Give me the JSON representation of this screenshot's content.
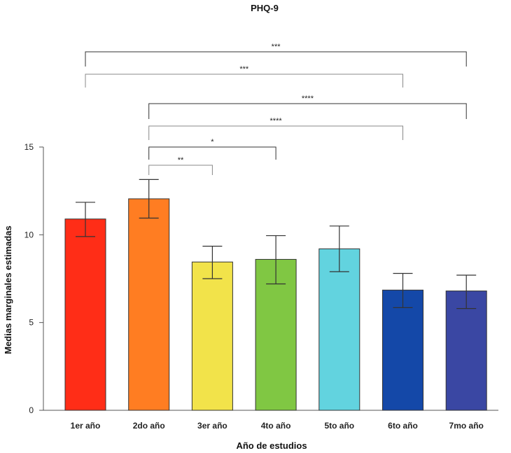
{
  "chart_data": {
    "type": "bar",
    "title": "PHQ-9",
    "xlabel": "Año de estudios",
    "ylabel": "Medias marginales estimadas",
    "ylim": [
      0,
      15
    ],
    "yticks": [
      0,
      5,
      10,
      15
    ],
    "grid": false,
    "categories": [
      "1er año",
      "2do año",
      "3er año",
      "4to año",
      "5to año",
      "6to año",
      "7mo año"
    ],
    "values": [
      10.9,
      12.05,
      8.45,
      8.6,
      9.2,
      6.85,
      6.8
    ],
    "error_low": [
      9.9,
      10.95,
      7.5,
      7.2,
      7.9,
      5.85,
      5.8
    ],
    "error_high": [
      11.85,
      13.15,
      9.35,
      9.95,
      10.5,
      7.8,
      7.7
    ],
    "colors": [
      "#ff2d17",
      "#ff7d22",
      "#f2e34a",
      "#80c743",
      "#62d3df",
      "#1448a8",
      "#3a47a3"
    ],
    "significance": [
      {
        "from": 0,
        "to": 6,
        "label": "***"
      },
      {
        "from": 0,
        "to": 5,
        "label": "***"
      },
      {
        "from": 1,
        "to": 6,
        "label": "****"
      },
      {
        "from": 1,
        "to": 5,
        "label": "****"
      },
      {
        "from": 1,
        "to": 3,
        "label": "*"
      },
      {
        "from": 1,
        "to": 2,
        "label": "**"
      }
    ]
  }
}
